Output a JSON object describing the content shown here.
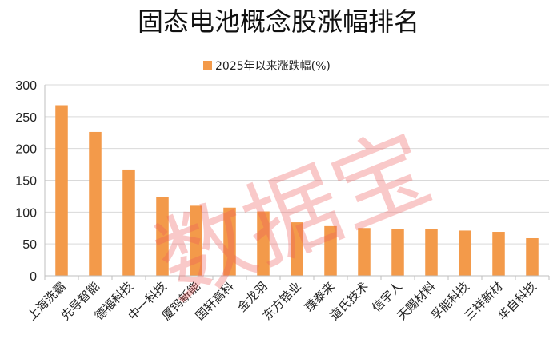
{
  "chart_data": {
    "type": "bar",
    "title": "固态电池概念股涨幅排名",
    "legend_position": "top",
    "series": [
      {
        "name": "2025年以来涨跌幅(%)",
        "color": "#f39a4a",
        "values": [
          268,
          226,
          167,
          124,
          110,
          107,
          101,
          84,
          78,
          75,
          74,
          74,
          71,
          69,
          59
        ]
      }
    ],
    "categories": [
      "上海洗霸",
      "先导智能",
      "德福科技",
      "中一科技",
      "厦钨新能",
      "国轩高科",
      "金龙羽",
      "东方锆业",
      "璞泰来",
      "道氏技术",
      "信宇人",
      "天赐材料",
      "孚能科技",
      "三祥新材",
      "华自科技"
    ],
    "ylim": [
      0,
      300
    ],
    "yticks": [
      0,
      50,
      100,
      150,
      200,
      250,
      300
    ],
    "grid": true,
    "xlabel": "",
    "ylabel": ""
  },
  "watermark_text": "数据宝"
}
